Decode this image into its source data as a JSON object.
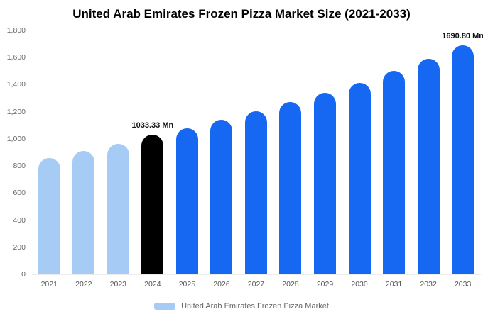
{
  "title": "United Arab Emirates Frozen Pizza Market Size (2021-2033)",
  "chart_data": {
    "type": "bar",
    "title": "United Arab Emirates Frozen Pizza Market Size (2021-2033)",
    "categories": [
      "2021",
      "2022",
      "2023",
      "2024",
      "2025",
      "2026",
      "2027",
      "2028",
      "2029",
      "2030",
      "2031",
      "2032",
      "2033"
    ],
    "values": [
      860,
      910,
      965,
      1033.33,
      1080,
      1140,
      1205,
      1270,
      1340,
      1415,
      1500,
      1590,
      1690.8
    ],
    "unit": "Mn",
    "xlabel": "",
    "ylabel": "",
    "ylim": [
      0,
      1800
    ],
    "ytick_values": [
      0,
      200,
      400,
      600,
      800,
      1000,
      1200,
      1400,
      1600,
      1800
    ],
    "ytick_labels": [
      "0",
      "200",
      "400",
      "600",
      "800",
      "1,000",
      "1,200",
      "1,400",
      "1,600",
      "1,800"
    ],
    "grid": false,
    "bar_colors": [
      "#a6ccf5",
      "#a6ccf5",
      "#a6ccf5",
      "#000000",
      "#1667f2",
      "#1667f2",
      "#1667f2",
      "#1667f2",
      "#1667f2",
      "#1667f2",
      "#1667f2",
      "#1667f2",
      "#1667f2"
    ],
    "annotations": [
      {
        "category": "2024",
        "text": "1033.33 Mn"
      },
      {
        "category": "2033",
        "text": "1690.80 Mn"
      }
    ],
    "legend": {
      "label": "United Arab Emirates Frozen Pizza Market",
      "color": "#a6ccf5",
      "position": "bottom"
    }
  }
}
